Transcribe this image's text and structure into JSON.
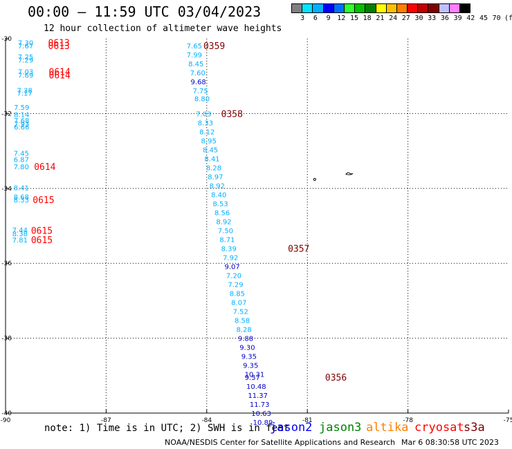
{
  "header": {
    "title": "00:00 – 11:59 UTC 03/04/2023",
    "subtitle": "12 hour collection of altimeter wave heights"
  },
  "color_scale": {
    "colors": [
      "#808080",
      "#00e5ff",
      "#00b0ff",
      "#0000ff",
      "#0070ff",
      "#33ff33",
      "#00c000",
      "#008000",
      "#ffff00",
      "#ffc000",
      "#ff8000",
      "#ff0000",
      "#c00000",
      "#800000",
      "#c0c0ff",
      "#ff80ff",
      "#000000"
    ],
    "labels": [
      "3",
      "6",
      "9",
      "12",
      "15",
      "18",
      "21",
      "24",
      "27",
      "30",
      "33",
      "36",
      "39",
      "42",
      "45",
      "70",
      "(ft)"
    ]
  },
  "axes": {
    "lat_ticks": [
      "-30",
      "-32",
      "-34",
      "-36",
      "-38",
      "-40"
    ],
    "lon_ticks": [
      "-90",
      "-87",
      "-84",
      "-81",
      "-78",
      "-75"
    ]
  },
  "observations": [
    {
      "sat": "s3a",
      "lon": -89.63,
      "lat": -30.1,
      "text": "7.30"
    },
    {
      "sat": "s3a",
      "lon": -89.63,
      "lat": -30.18,
      "text": "7.67"
    },
    {
      "sat": "s3a",
      "lon": -89.63,
      "lat": -30.48,
      "text": "7.25"
    },
    {
      "sat": "s3a",
      "lon": -89.63,
      "lat": -30.56,
      "text": "7.29"
    },
    {
      "sat": "s3a",
      "lon": -89.63,
      "lat": -30.88,
      "text": "7.03"
    },
    {
      "sat": "s3a",
      "lon": -89.63,
      "lat": -30.97,
      "text": "7.69"
    },
    {
      "sat": "s3a",
      "lon": -89.66,
      "lat": -31.37,
      "text": "7.38"
    },
    {
      "sat": "s3a",
      "lon": -89.66,
      "lat": -31.45,
      "text": "7.17"
    },
    {
      "sat": "s3a",
      "lon": -89.75,
      "lat": -31.83,
      "text": "7.59"
    },
    {
      "sat": "s3a",
      "lon": -89.75,
      "lat": -32.02,
      "text": "8.14"
    },
    {
      "sat": "s3a",
      "lon": -89.75,
      "lat": -32.18,
      "text": "7.68"
    },
    {
      "sat": "s3a",
      "lon": -89.75,
      "lat": -32.27,
      "text": "7.93"
    },
    {
      "sat": "s3a",
      "lon": -89.75,
      "lat": -32.35,
      "text": "6.66"
    },
    {
      "sat": "s3a",
      "lon": -89.76,
      "lat": -33.05,
      "text": "7.45"
    },
    {
      "sat": "s3a",
      "lon": -89.76,
      "lat": -33.22,
      "text": "6.87"
    },
    {
      "sat": "s3a",
      "lon": -89.76,
      "lat": -33.41,
      "text": "7.80"
    },
    {
      "sat": "s3a",
      "lon": -89.76,
      "lat": -33.98,
      "text": "8.41"
    },
    {
      "sat": "s3a",
      "lon": -89.76,
      "lat": -34.22,
      "text": "8.68"
    },
    {
      "sat": "s3a",
      "lon": -89.76,
      "lat": -34.3,
      "text": "8.33"
    },
    {
      "sat": "s3a",
      "lon": -89.8,
      "lat": -35.1,
      "text": "7.44"
    },
    {
      "sat": "s3a",
      "lon": -89.8,
      "lat": -35.2,
      "text": "8.38"
    },
    {
      "sat": "s3a",
      "lon": -89.8,
      "lat": -35.37,
      "text": "7.81"
    },
    {
      "sat": "s3a",
      "lon": -84.6,
      "lat": -30.18,
      "text": "7.65"
    },
    {
      "sat": "s3a",
      "lon": -84.6,
      "lat": -30.42,
      "text": "7.99"
    },
    {
      "sat": "s3a",
      "lon": -84.55,
      "lat": -30.66,
      "text": "8.45"
    },
    {
      "sat": "s3a",
      "lon": -84.5,
      "lat": -30.9,
      "text": "7.60"
    },
    {
      "sat": "s3a",
      "lon": -84.48,
      "lat": -31.14,
      "text": "9.68"
    },
    {
      "sat": "s3a",
      "lon": -84.42,
      "lat": -31.38,
      "text": "7.75"
    },
    {
      "sat": "s3a",
      "lon": -84.37,
      "lat": -31.6,
      "text": "8.80"
    },
    {
      "sat": "s3a",
      "lon": -84.32,
      "lat": -32.0,
      "text": "7.03"
    },
    {
      "sat": "s3a",
      "lon": -84.27,
      "lat": -32.24,
      "text": "8.33"
    },
    {
      "sat": "s3a",
      "lon": -84.22,
      "lat": -32.48,
      "text": "8.12"
    },
    {
      "sat": "s3a",
      "lon": -84.17,
      "lat": -32.72,
      "text": "8.95"
    },
    {
      "sat": "s3a",
      "lon": -84.12,
      "lat": -32.96,
      "text": "8.45"
    },
    {
      "sat": "s3a",
      "lon": -84.07,
      "lat": -33.2,
      "text": "8.41"
    },
    {
      "sat": "s3a",
      "lon": -84.02,
      "lat": -33.44,
      "text": "8.28"
    },
    {
      "sat": "s3a",
      "lon": -83.97,
      "lat": -33.68,
      "text": "8.97"
    },
    {
      "sat": "s3a",
      "lon": -83.92,
      "lat": -33.92,
      "text": "8.92"
    },
    {
      "sat": "s3a",
      "lon": -83.87,
      "lat": -34.16,
      "text": "8.40"
    },
    {
      "sat": "s3a",
      "lon": -83.82,
      "lat": -34.4,
      "text": "8.53"
    },
    {
      "sat": "s3a",
      "lon": -83.77,
      "lat": -34.64,
      "text": "8.56"
    },
    {
      "sat": "s3a",
      "lon": -83.72,
      "lat": -34.88,
      "text": "8.92"
    },
    {
      "sat": "s3a",
      "lon": -83.67,
      "lat": -35.12,
      "text": "7.50"
    },
    {
      "sat": "s3a",
      "lon": -83.62,
      "lat": -35.36,
      "text": "8.71"
    },
    {
      "sat": "s3a",
      "lon": -83.57,
      "lat": -35.6,
      "text": "8.39"
    },
    {
      "sat": "s3a",
      "lon": -83.52,
      "lat": -35.84,
      "text": "7.92"
    },
    {
      "sat": "s3a",
      "lon": -83.47,
      "lat": -36.08,
      "text": "9.07"
    },
    {
      "sat": "s3a",
      "lon": -83.42,
      "lat": -36.32,
      "text": "7.20"
    },
    {
      "sat": "s3a",
      "lon": -83.37,
      "lat": -36.56,
      "text": "7.29"
    },
    {
      "sat": "s3a",
      "lon": -83.32,
      "lat": -36.8,
      "text": "8.85"
    },
    {
      "sat": "s3a",
      "lon": -83.27,
      "lat": -37.04,
      "text": "8.07"
    },
    {
      "sat": "s3a",
      "lon": -83.22,
      "lat": -37.28,
      "text": "7.52"
    },
    {
      "sat": "s3a",
      "lon": -83.17,
      "lat": -37.52,
      "text": "8.58"
    },
    {
      "sat": "s3a",
      "lon": -83.12,
      "lat": -37.76,
      "text": "8.28"
    },
    {
      "sat": "s3a",
      "lon": -83.07,
      "lat": -38.0,
      "text": "9.88"
    },
    {
      "sat": "s3a",
      "lon": -83.02,
      "lat": -38.24,
      "text": "9.30"
    },
    {
      "sat": "s3a",
      "lon": -82.97,
      "lat": -38.48,
      "text": "9.35"
    },
    {
      "sat": "s3a",
      "lon": -82.92,
      "lat": -38.72,
      "text": "9.35"
    },
    {
      "sat": "s3a",
      "lon": -82.87,
      "lat": -38.96,
      "text": "10.31"
    },
    {
      "sat": "s3a",
      "lon": -82.87,
      "lat": -39.04,
      "text": "9.57"
    },
    {
      "sat": "s3a",
      "lon": -82.82,
      "lat": -39.28,
      "text": "10.48"
    },
    {
      "sat": "s3a",
      "lon": -82.77,
      "lat": -39.52,
      "text": "11.37"
    },
    {
      "sat": "s3a",
      "lon": -82.72,
      "lat": -39.76,
      "text": "11.73"
    },
    {
      "sat": "s3a",
      "lon": -82.67,
      "lat": -40.0,
      "text": "10.63"
    },
    {
      "sat": "s3a",
      "lon": -82.62,
      "lat": -40.24,
      "text": "10.89"
    }
  ],
  "pass_labels": [
    {
      "sat": "cryosat",
      "lon": -88.73,
      "lat": -30.1,
      "text": "0613"
    },
    {
      "sat": "cryosat",
      "lon": -88.73,
      "lat": -30.18,
      "text": "0613"
    },
    {
      "sat": "cryosat",
      "lon": -88.71,
      "lat": -30.88,
      "text": "0614"
    },
    {
      "sat": "cryosat",
      "lon": -88.71,
      "lat": -30.97,
      "text": "0614"
    },
    {
      "sat": "cryosat",
      "lon": -89.15,
      "lat": -33.41,
      "text": "0614"
    },
    {
      "sat": "cryosat",
      "lon": -89.19,
      "lat": -34.3,
      "text": "0615"
    },
    {
      "sat": "cryosat",
      "lon": -89.24,
      "lat": -35.12,
      "text": "0615"
    },
    {
      "sat": "cryosat",
      "lon": -89.24,
      "lat": -35.37,
      "text": "0615"
    },
    {
      "sat": "s3a",
      "lon": -84.1,
      "lat": -30.18,
      "text": "0359"
    },
    {
      "sat": "s3a",
      "lon": -83.57,
      "lat": -32.0,
      "text": "0358"
    },
    {
      "sat": "s3a",
      "lon": -81.58,
      "lat": -35.6,
      "text": "0357"
    },
    {
      "sat": "s3a",
      "lon": -80.47,
      "lat": -39.04,
      "text": "0356"
    }
  ],
  "sat_colors": {
    "s3a": "#800000",
    "cryosat": "#ff0000"
  },
  "wave_colors": {
    "low": "#00b0ff",
    "high": "#0000c8"
  },
  "note": "note: 1) Time is in UTC; 2) SWH is in feet",
  "legend": [
    {
      "name": "jason2",
      "color": "#0000ff"
    },
    {
      "name": "jason3",
      "color": "#008000"
    },
    {
      "name": "altika",
      "color": "#ff8000"
    },
    {
      "name": "cryosat",
      "color": "#ff0000"
    },
    {
      "name": "s3a",
      "color": "#800000"
    }
  ],
  "footer": {
    "credit": "NOAA/NESDIS Center for Satellite Applications and Research",
    "generated": "Mar  6 08:30:58 UTC 2023"
  }
}
